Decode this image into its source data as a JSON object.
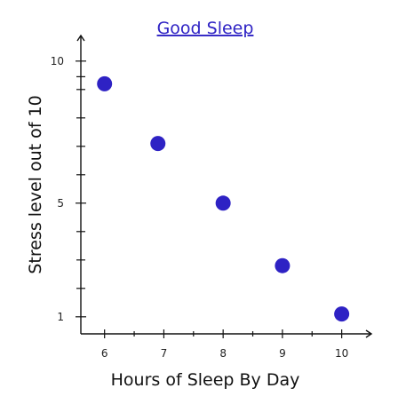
{
  "chart_data": {
    "type": "scatter",
    "title": "Good Sleep",
    "xlabel": "Hours of Sleep By Day",
    "ylabel": "Stress level out of 10",
    "x_ticks": [
      6,
      7,
      8,
      9,
      10
    ],
    "y_ticks": [
      1,
      5,
      10
    ],
    "xlim": [
      5.6,
      10.5
    ],
    "ylim": [
      0.4,
      10.9
    ],
    "grid": false,
    "points": [
      {
        "x": 6.0,
        "y": 9.2
      },
      {
        "x": 6.9,
        "y": 7.1
      },
      {
        "x": 8.0,
        "y": 5.0
      },
      {
        "x": 9.0,
        "y": 2.8
      },
      {
        "x": 10.0,
        "y": 1.1
      }
    ]
  },
  "colors": {
    "point": "#2e22c4",
    "title": "#2e22c4",
    "axis": "#111111"
  }
}
